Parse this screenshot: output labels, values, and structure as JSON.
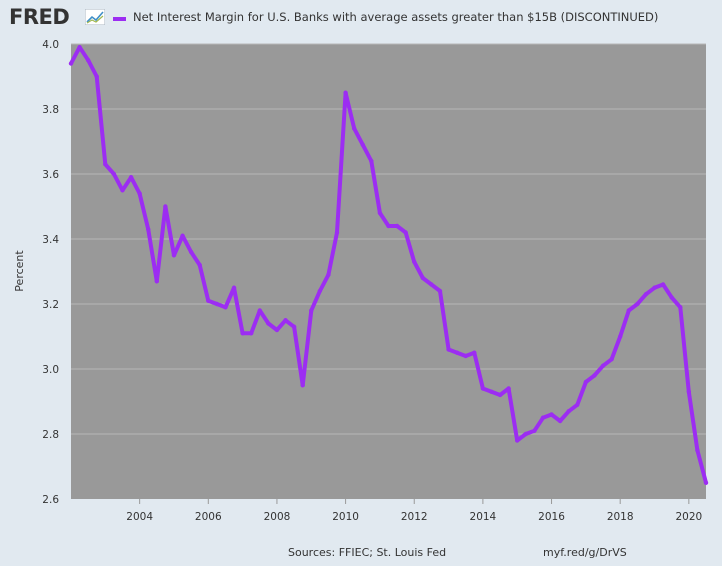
{
  "header": {
    "logo_text": "FRED",
    "logo_icon": "chart-trend-icon",
    "legend_label": "Net Interest Margin for U.S. Banks with average assets greater than $15B (DISCONTINUED)"
  },
  "footer": {
    "sources": "Sources: FFIEC; St. Louis Fed",
    "short_url": "myf.red/g/DrVS"
  },
  "colors": {
    "series": "#9c2df2",
    "plot_background": "#999999",
    "page_background": "#e1e9f0",
    "gridline": "#b8b8b8"
  },
  "chart_data": {
    "type": "line",
    "ylabel": "Percent",
    "xlim": [
      2002.0,
      2020.5
    ],
    "ylim": [
      2.6,
      4.0
    ],
    "y_ticks": [
      "2.6",
      "2.8",
      "3.0",
      "3.2",
      "3.4",
      "3.6",
      "3.8",
      "4.0"
    ],
    "x_ticks": [
      "2004",
      "2006",
      "2008",
      "2010",
      "2012",
      "2014",
      "2016",
      "2018",
      "2020"
    ],
    "grid": "horizontal",
    "legend": "top",
    "series": [
      {
        "name": "Net Interest Margin for U.S. Banks with average assets greater than $15B (DISCONTINUED)",
        "x": [
          2002.0,
          2002.25,
          2002.5,
          2002.75,
          2003.0,
          2003.25,
          2003.5,
          2003.75,
          2004.0,
          2004.25,
          2004.5,
          2004.75,
          2005.0,
          2005.25,
          2005.5,
          2005.75,
          2006.0,
          2006.25,
          2006.5,
          2006.75,
          2007.0,
          2007.25,
          2007.5,
          2007.75,
          2008.0,
          2008.25,
          2008.5,
          2008.75,
          2009.0,
          2009.25,
          2009.5,
          2009.75,
          2010.0,
          2010.25,
          2010.5,
          2010.75,
          2011.0,
          2011.25,
          2011.5,
          2011.75,
          2012.0,
          2012.25,
          2012.5,
          2012.75,
          2013.0,
          2013.25,
          2013.5,
          2013.75,
          2014.0,
          2014.25,
          2014.5,
          2014.75,
          2015.0,
          2015.25,
          2015.5,
          2015.75,
          2016.0,
          2016.25,
          2016.5,
          2016.75,
          2017.0,
          2017.25,
          2017.5,
          2017.75,
          2018.0,
          2018.25,
          2018.5,
          2018.75,
          2019.0,
          2019.25,
          2019.5,
          2019.75,
          2020.0,
          2020.25,
          2020.5
        ],
        "values": [
          3.94,
          3.99,
          3.95,
          3.9,
          3.63,
          3.6,
          3.55,
          3.59,
          3.54,
          3.43,
          3.27,
          3.5,
          3.35,
          3.41,
          3.36,
          3.32,
          3.21,
          3.2,
          3.19,
          3.25,
          3.11,
          3.11,
          3.18,
          3.14,
          3.12,
          3.15,
          3.13,
          2.95,
          3.18,
          3.24,
          3.29,
          3.42,
          3.85,
          3.74,
          3.69,
          3.64,
          3.48,
          3.44,
          3.44,
          3.42,
          3.33,
          3.28,
          3.26,
          3.24,
          3.06,
          3.05,
          3.04,
          3.05,
          2.94,
          2.93,
          2.92,
          2.94,
          2.78,
          2.8,
          2.81,
          2.85,
          2.86,
          2.84,
          2.87,
          2.89,
          2.96,
          2.98,
          3.01,
          3.03,
          3.1,
          3.18,
          3.2,
          3.23,
          3.25,
          3.26,
          3.22,
          3.19,
          2.93,
          2.75,
          2.65
        ]
      }
    ]
  }
}
